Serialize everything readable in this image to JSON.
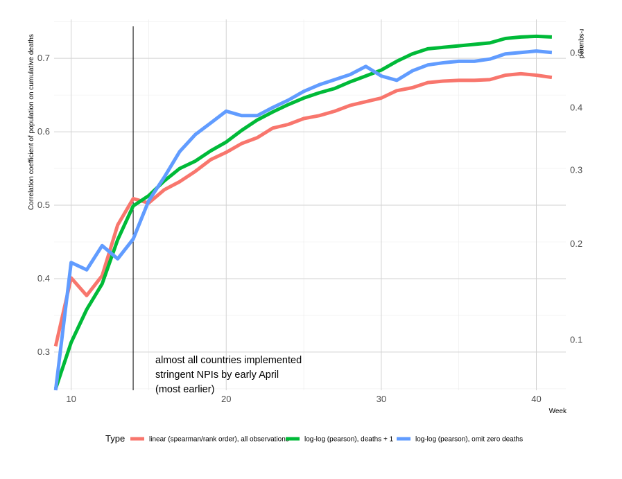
{
  "chart_data": {
    "type": "line",
    "xlabel": "Week",
    "ylabel": "Correlation coefficient of population on cumulative deaths",
    "y2label": "r-squared",
    "xlim": [
      8.9,
      41.9
    ],
    "ylim": [
      0.248,
      0.753
    ],
    "x_ticks": [
      10,
      20,
      30,
      40
    ],
    "y_ticks": [
      0.3,
      0.4,
      0.5,
      0.6,
      0.7
    ],
    "y_tick_labels": [
      "0.3",
      "0.4",
      "0.5",
      "0.6",
      "0.7"
    ],
    "y2_ticks": [
      0.1,
      0.2,
      0.3,
      0.4,
      0.5
    ],
    "y2_tick_labels": [
      "0.1",
      "0.2",
      "0.3",
      "0.4",
      "0.5"
    ],
    "grid": true,
    "legend_position": "bottom",
    "legend_title": "Type",
    "vline_x": 14,
    "annotation": {
      "x": 14.4,
      "lines": [
        "almost all countries implemented",
        "stringent NPIs by early April",
        "(most earlier)"
      ]
    },
    "x": [
      9,
      10,
      11,
      12,
      13,
      14,
      15,
      16,
      17,
      18,
      19,
      20,
      21,
      22,
      23,
      24,
      25,
      26,
      27,
      28,
      29,
      30,
      31,
      32,
      33,
      34,
      35,
      36,
      37,
      38,
      39,
      40,
      41
    ],
    "series": [
      {
        "name": "linear (spearman/rank order), all observations",
        "color": "#F8766D",
        "values": [
          0.308,
          0.401,
          0.377,
          0.404,
          0.473,
          0.509,
          0.503,
          0.521,
          0.532,
          0.546,
          0.562,
          0.572,
          0.584,
          0.592,
          0.605,
          0.61,
          0.618,
          0.622,
          0.628,
          0.636,
          0.641,
          0.646,
          0.656,
          0.66,
          0.667,
          0.669,
          0.67,
          0.67,
          0.671,
          0.677,
          0.679,
          0.677,
          0.674
        ]
      },
      {
        "name": "log-log (pearson), deaths + 1",
        "color": "#00BA38",
        "values": [
          0.25,
          0.313,
          0.358,
          0.393,
          0.453,
          0.499,
          0.513,
          0.533,
          0.55,
          0.56,
          0.574,
          0.586,
          0.602,
          0.616,
          0.627,
          0.637,
          0.646,
          0.653,
          0.659,
          0.668,
          0.676,
          0.684,
          0.696,
          0.706,
          0.713,
          0.715,
          0.717,
          0.719,
          0.721,
          0.727,
          0.729,
          0.73,
          0.729
        ]
      },
      {
        "name": "log-log (pearson), omit zero deaths",
        "color": "#619CFF",
        "values": [
          0.248,
          0.422,
          0.412,
          0.445,
          0.427,
          0.454,
          0.506,
          0.538,
          0.573,
          0.596,
          0.612,
          0.628,
          0.622,
          0.622,
          0.633,
          0.643,
          0.655,
          0.664,
          0.671,
          0.678,
          0.689,
          0.676,
          0.67,
          0.683,
          0.691,
          0.694,
          0.696,
          0.696,
          0.699,
          0.706,
          0.708,
          0.71,
          0.708
        ]
      }
    ]
  }
}
